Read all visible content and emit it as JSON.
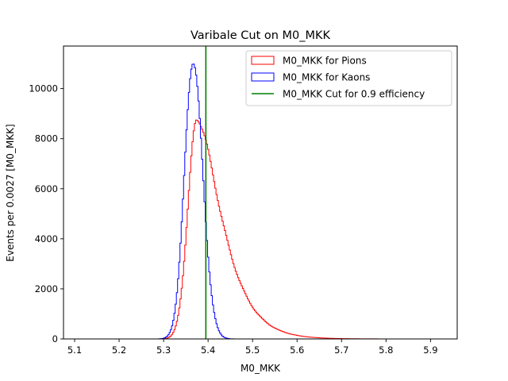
{
  "chart_data": {
    "type": "histogram",
    "title": "Varibale Cut on M0_MKK",
    "xlabel": "M0_MKK",
    "ylabel": "Events per 0.0027 [M0_MKK]",
    "xlim": [
      5.075,
      5.96
    ],
    "ylim": [
      0,
      11700
    ],
    "x_ticks": [
      5.1,
      5.2,
      5.3,
      5.4,
      5.5,
      5.6,
      5.7,
      5.8,
      5.9
    ],
    "y_ticks": [
      0,
      2000,
      4000,
      6000,
      8000,
      10000
    ],
    "hist_range": [
      5.11,
      5.92
    ],
    "grid": false,
    "legend_position": "top-right",
    "series": [
      {
        "name": "M0_MKK for Pions",
        "style": "step",
        "color": "#ff0000",
        "peak_x": 5.375,
        "peak_y": 8800,
        "sigma_left": 0.02,
        "sigma_right": 0.038,
        "tail": "long-right"
      },
      {
        "name": "M0_MKK for Kaons",
        "style": "step",
        "color": "#0000ff",
        "peak_x": 5.366,
        "peak_y": 11100,
        "sigma_left": 0.019,
        "sigma_right": 0.022,
        "tail": "short-right"
      }
    ],
    "vlines": [
      {
        "name": "M0_MKK Cut for 0.9 efficiency",
        "x": 5.395,
        "color": "#008000"
      }
    ]
  }
}
